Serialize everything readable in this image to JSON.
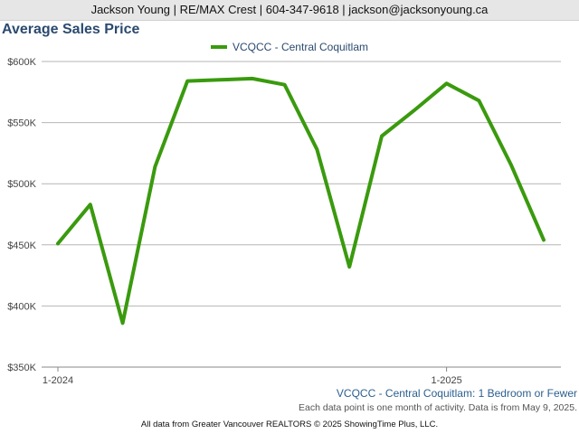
{
  "header": {
    "contact_line": "Jackson Young | RE/MAX Crest | 604-347-9618 | jackson@jacksonyoung.ca"
  },
  "chart_data": {
    "type": "line",
    "title": "Average Sales Price",
    "series": [
      {
        "name": "VCQCC - Central Coquitlam",
        "color": "#3a9a0e",
        "x": [
          "2024-01",
          "2024-02",
          "2024-03",
          "2024-04",
          "2024-05",
          "2024-06",
          "2024-07",
          "2024-08",
          "2024-09",
          "2024-10",
          "2024-11",
          "2024-12",
          "2025-01",
          "2025-02",
          "2025-03",
          "2025-04"
        ],
        "values": [
          451000,
          483000,
          386000,
          514000,
          584000,
          585000,
          586000,
          581000,
          528000,
          432000,
          539000,
          560000,
          582000,
          568000,
          515000,
          454000
        ]
      }
    ],
    "ylim": [
      350000,
      600000
    ],
    "y_ticks": [
      350000,
      400000,
      450000,
      500000,
      550000,
      600000
    ],
    "y_tick_labels": [
      "$350K",
      "$400K",
      "$450K",
      "$500K",
      "$550K",
      "$600K"
    ],
    "x_tick_labels": [
      {
        "x": "2024-01",
        "label": "1-2024"
      },
      {
        "x": "2025-01",
        "label": "1-2025"
      }
    ],
    "grid": "horizontal",
    "legend_position": "top-center",
    "subtitle": "VCQCC - Central Coquitlam: 1 Bedroom or Fewer",
    "note": "Each data point is one month of activity. Data is from May 9, 2025.",
    "source": "All data from Greater Vancouver REALTORS © 2025 ShowingTime Plus, LLC."
  }
}
